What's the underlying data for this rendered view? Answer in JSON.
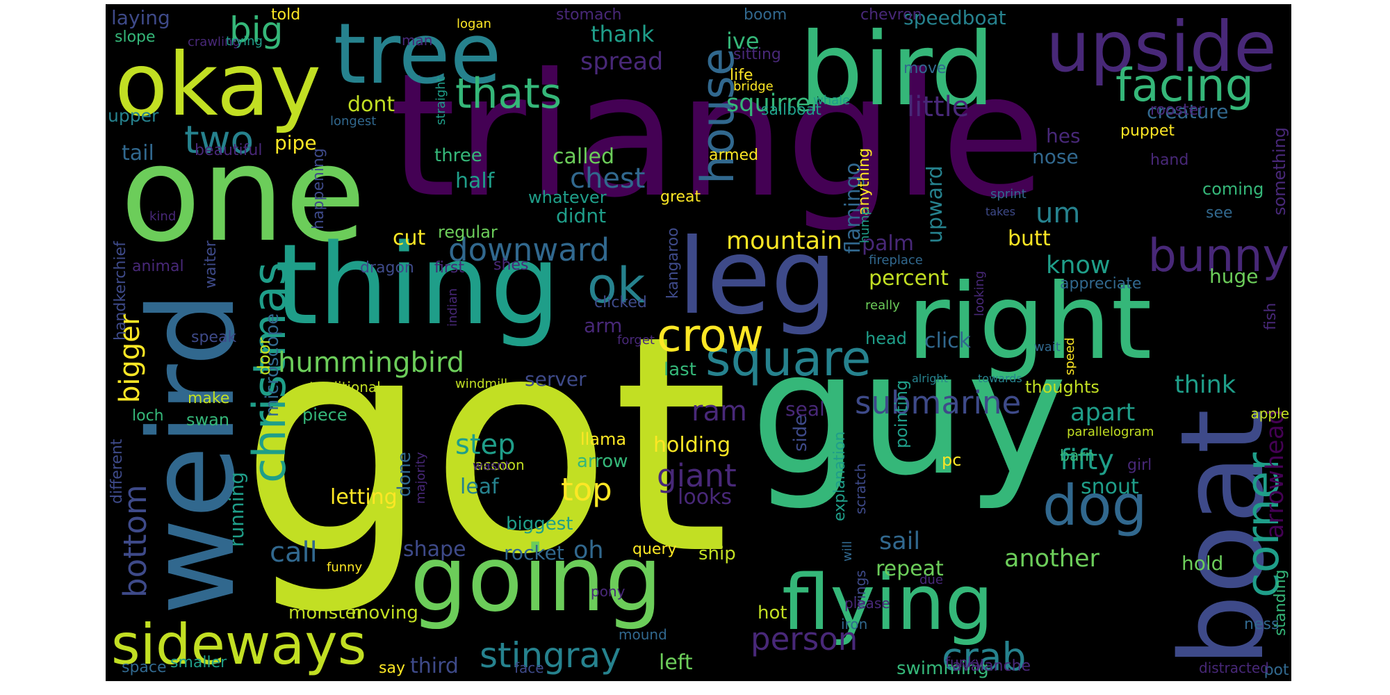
{
  "background_color": "#000000",
  "palette": {
    "lime": "#c2df23",
    "yellow": "#fde725",
    "green": "#6ccd5a",
    "sea": "#35b779",
    "teal": "#1f9e89",
    "blue": "#26828e",
    "steel": "#31688e",
    "indigo": "#3e4a89",
    "purple": "#482878",
    "violet": "#440154"
  },
  "words": [
    {
      "text": "triangle"
    },
    {
      "text": "got"
    },
    {
      "text": "one"
    },
    {
      "text": "guy"
    },
    {
      "text": "weird"
    },
    {
      "text": "thing"
    },
    {
      "text": "right"
    },
    {
      "text": "bird"
    },
    {
      "text": "boat"
    },
    {
      "text": "tree"
    },
    {
      "text": "okay"
    },
    {
      "text": "leg"
    },
    {
      "text": "going"
    },
    {
      "text": "flying"
    },
    {
      "text": "upside"
    },
    {
      "text": "christmas"
    },
    {
      "text": "sideways"
    },
    {
      "text": "house"
    },
    {
      "text": "corner"
    },
    {
      "text": "dog"
    },
    {
      "text": "square"
    },
    {
      "text": "crow"
    },
    {
      "text": "ok"
    },
    {
      "text": "bunny"
    },
    {
      "text": "facing"
    },
    {
      "text": "thats"
    },
    {
      "text": "two"
    },
    {
      "text": "stingray"
    },
    {
      "text": "crab"
    },
    {
      "text": "person"
    },
    {
      "text": "hummingbird"
    },
    {
      "text": "bottom"
    },
    {
      "text": "downward"
    },
    {
      "text": "submarine"
    },
    {
      "text": "bigger"
    },
    {
      "text": "giant"
    },
    {
      "text": "top"
    },
    {
      "text": "mountain"
    },
    {
      "text": "fifty"
    },
    {
      "text": "ram"
    },
    {
      "text": "sail"
    },
    {
      "text": "another"
    },
    {
      "text": "step"
    },
    {
      "text": "big"
    },
    {
      "text": "little"
    },
    {
      "text": "squirrel"
    },
    {
      "text": "chest"
    },
    {
      "text": "spread"
    },
    {
      "text": "um"
    },
    {
      "text": "arrowhead"
    },
    {
      "text": "apart"
    },
    {
      "text": "call"
    },
    {
      "text": "thank"
    },
    {
      "text": "dont"
    },
    {
      "text": "palm"
    },
    {
      "text": "know"
    },
    {
      "text": "flamingo"
    },
    {
      "text": "holding"
    },
    {
      "text": "click"
    },
    {
      "text": "think"
    },
    {
      "text": "half"
    },
    {
      "text": "called"
    },
    {
      "text": "repeat"
    },
    {
      "text": "cut"
    },
    {
      "text": "leaf"
    },
    {
      "text": "looks"
    },
    {
      "text": "shape"
    },
    {
      "text": "ive"
    },
    {
      "text": "oh"
    },
    {
      "text": "third"
    },
    {
      "text": "left"
    },
    {
      "text": "letting"
    },
    {
      "text": "butt"
    },
    {
      "text": "snout"
    },
    {
      "text": "three"
    },
    {
      "text": "tail"
    },
    {
      "text": "pipe"
    },
    {
      "text": "upward"
    },
    {
      "text": "hes"
    },
    {
      "text": "nose"
    },
    {
      "text": "percent"
    },
    {
      "text": "server"
    },
    {
      "text": "creature"
    },
    {
      "text": "huge"
    },
    {
      "text": "speedboat"
    },
    {
      "text": "laying"
    },
    {
      "text": "didnt"
    },
    {
      "text": "rocket"
    },
    {
      "text": "arm"
    },
    {
      "text": "running"
    },
    {
      "text": "microscope"
    },
    {
      "text": "upper"
    },
    {
      "text": "seal"
    },
    {
      "text": "hold"
    },
    {
      "text": "swimming"
    },
    {
      "text": "monster"
    },
    {
      "text": "moving"
    },
    {
      "text": "done"
    },
    {
      "text": "arrow"
    },
    {
      "text": "ship"
    },
    {
      "text": "biggest"
    },
    {
      "text": "hot"
    },
    {
      "text": "llama"
    },
    {
      "text": "chevron"
    },
    {
      "text": "puppet"
    },
    {
      "text": "rooster"
    },
    {
      "text": "something"
    },
    {
      "text": "door"
    },
    {
      "text": "thoughts"
    },
    {
      "text": "head"
    },
    {
      "text": "sailboat"
    },
    {
      "text": "side"
    },
    {
      "text": "regular"
    },
    {
      "text": "whatever"
    },
    {
      "text": "pointing"
    },
    {
      "text": "explanation"
    },
    {
      "text": "pc"
    },
    {
      "text": "standing"
    },
    {
      "text": "swan"
    },
    {
      "text": "piece"
    },
    {
      "text": "loch"
    },
    {
      "text": "make"
    },
    {
      "text": "query"
    },
    {
      "text": "coming"
    },
    {
      "text": "move"
    },
    {
      "text": "sitting"
    },
    {
      "text": "life"
    },
    {
      "text": "slope"
    },
    {
      "text": "told"
    },
    {
      "text": "stomach"
    },
    {
      "text": "boom"
    },
    {
      "text": "armed"
    },
    {
      "text": "great"
    },
    {
      "text": "anything"
    },
    {
      "text": "see"
    },
    {
      "text": "hand"
    },
    {
      "text": "girl"
    },
    {
      "text": "barn"
    },
    {
      "text": "pot"
    },
    {
      "text": "ness"
    },
    {
      "text": "smaller"
    },
    {
      "text": "say"
    },
    {
      "text": "space"
    },
    {
      "text": "first"
    },
    {
      "text": "beautiful"
    },
    {
      "text": "man"
    },
    {
      "text": "animal"
    },
    {
      "text": "handkerchief"
    },
    {
      "text": "speak"
    },
    {
      "text": "waiter"
    },
    {
      "text": "traditional"
    },
    {
      "text": "different"
    },
    {
      "text": "kind"
    },
    {
      "text": "happening"
    },
    {
      "text": "shes"
    },
    {
      "text": "dragon"
    },
    {
      "text": "clicked"
    },
    {
      "text": "kangaroo"
    },
    {
      "text": "fish"
    },
    {
      "text": "appreciate"
    },
    {
      "text": "parallelogram"
    },
    {
      "text": "apple"
    },
    {
      "text": "avalanche"
    },
    {
      "text": "distracted"
    },
    {
      "text": "face"
    },
    {
      "text": "funky"
    },
    {
      "text": "wings"
    },
    {
      "text": "pony"
    },
    {
      "text": "mound"
    },
    {
      "text": "iron"
    },
    {
      "text": "please"
    },
    {
      "text": "will"
    },
    {
      "text": "due"
    },
    {
      "text": "scratch"
    },
    {
      "text": "raccoon"
    },
    {
      "text": "wasnt"
    },
    {
      "text": "majority"
    },
    {
      "text": "funny"
    },
    {
      "text": "windmill"
    },
    {
      "text": "indian"
    },
    {
      "text": "forget"
    },
    {
      "text": "straight"
    },
    {
      "text": "logan"
    },
    {
      "text": "bridge"
    },
    {
      "text": "whale"
    },
    {
      "text": "crawling"
    },
    {
      "text": "trying"
    },
    {
      "text": "longest"
    },
    {
      "text": "fireplace"
    },
    {
      "text": "really"
    },
    {
      "text": "alright"
    },
    {
      "text": "towards"
    },
    {
      "text": "wait"
    },
    {
      "text": "looking"
    },
    {
      "text": "speed"
    },
    {
      "text": "sprint"
    },
    {
      "text": "takes"
    },
    {
      "text": "hump"
    },
    {
      "text": "last"
    }
  ]
}
